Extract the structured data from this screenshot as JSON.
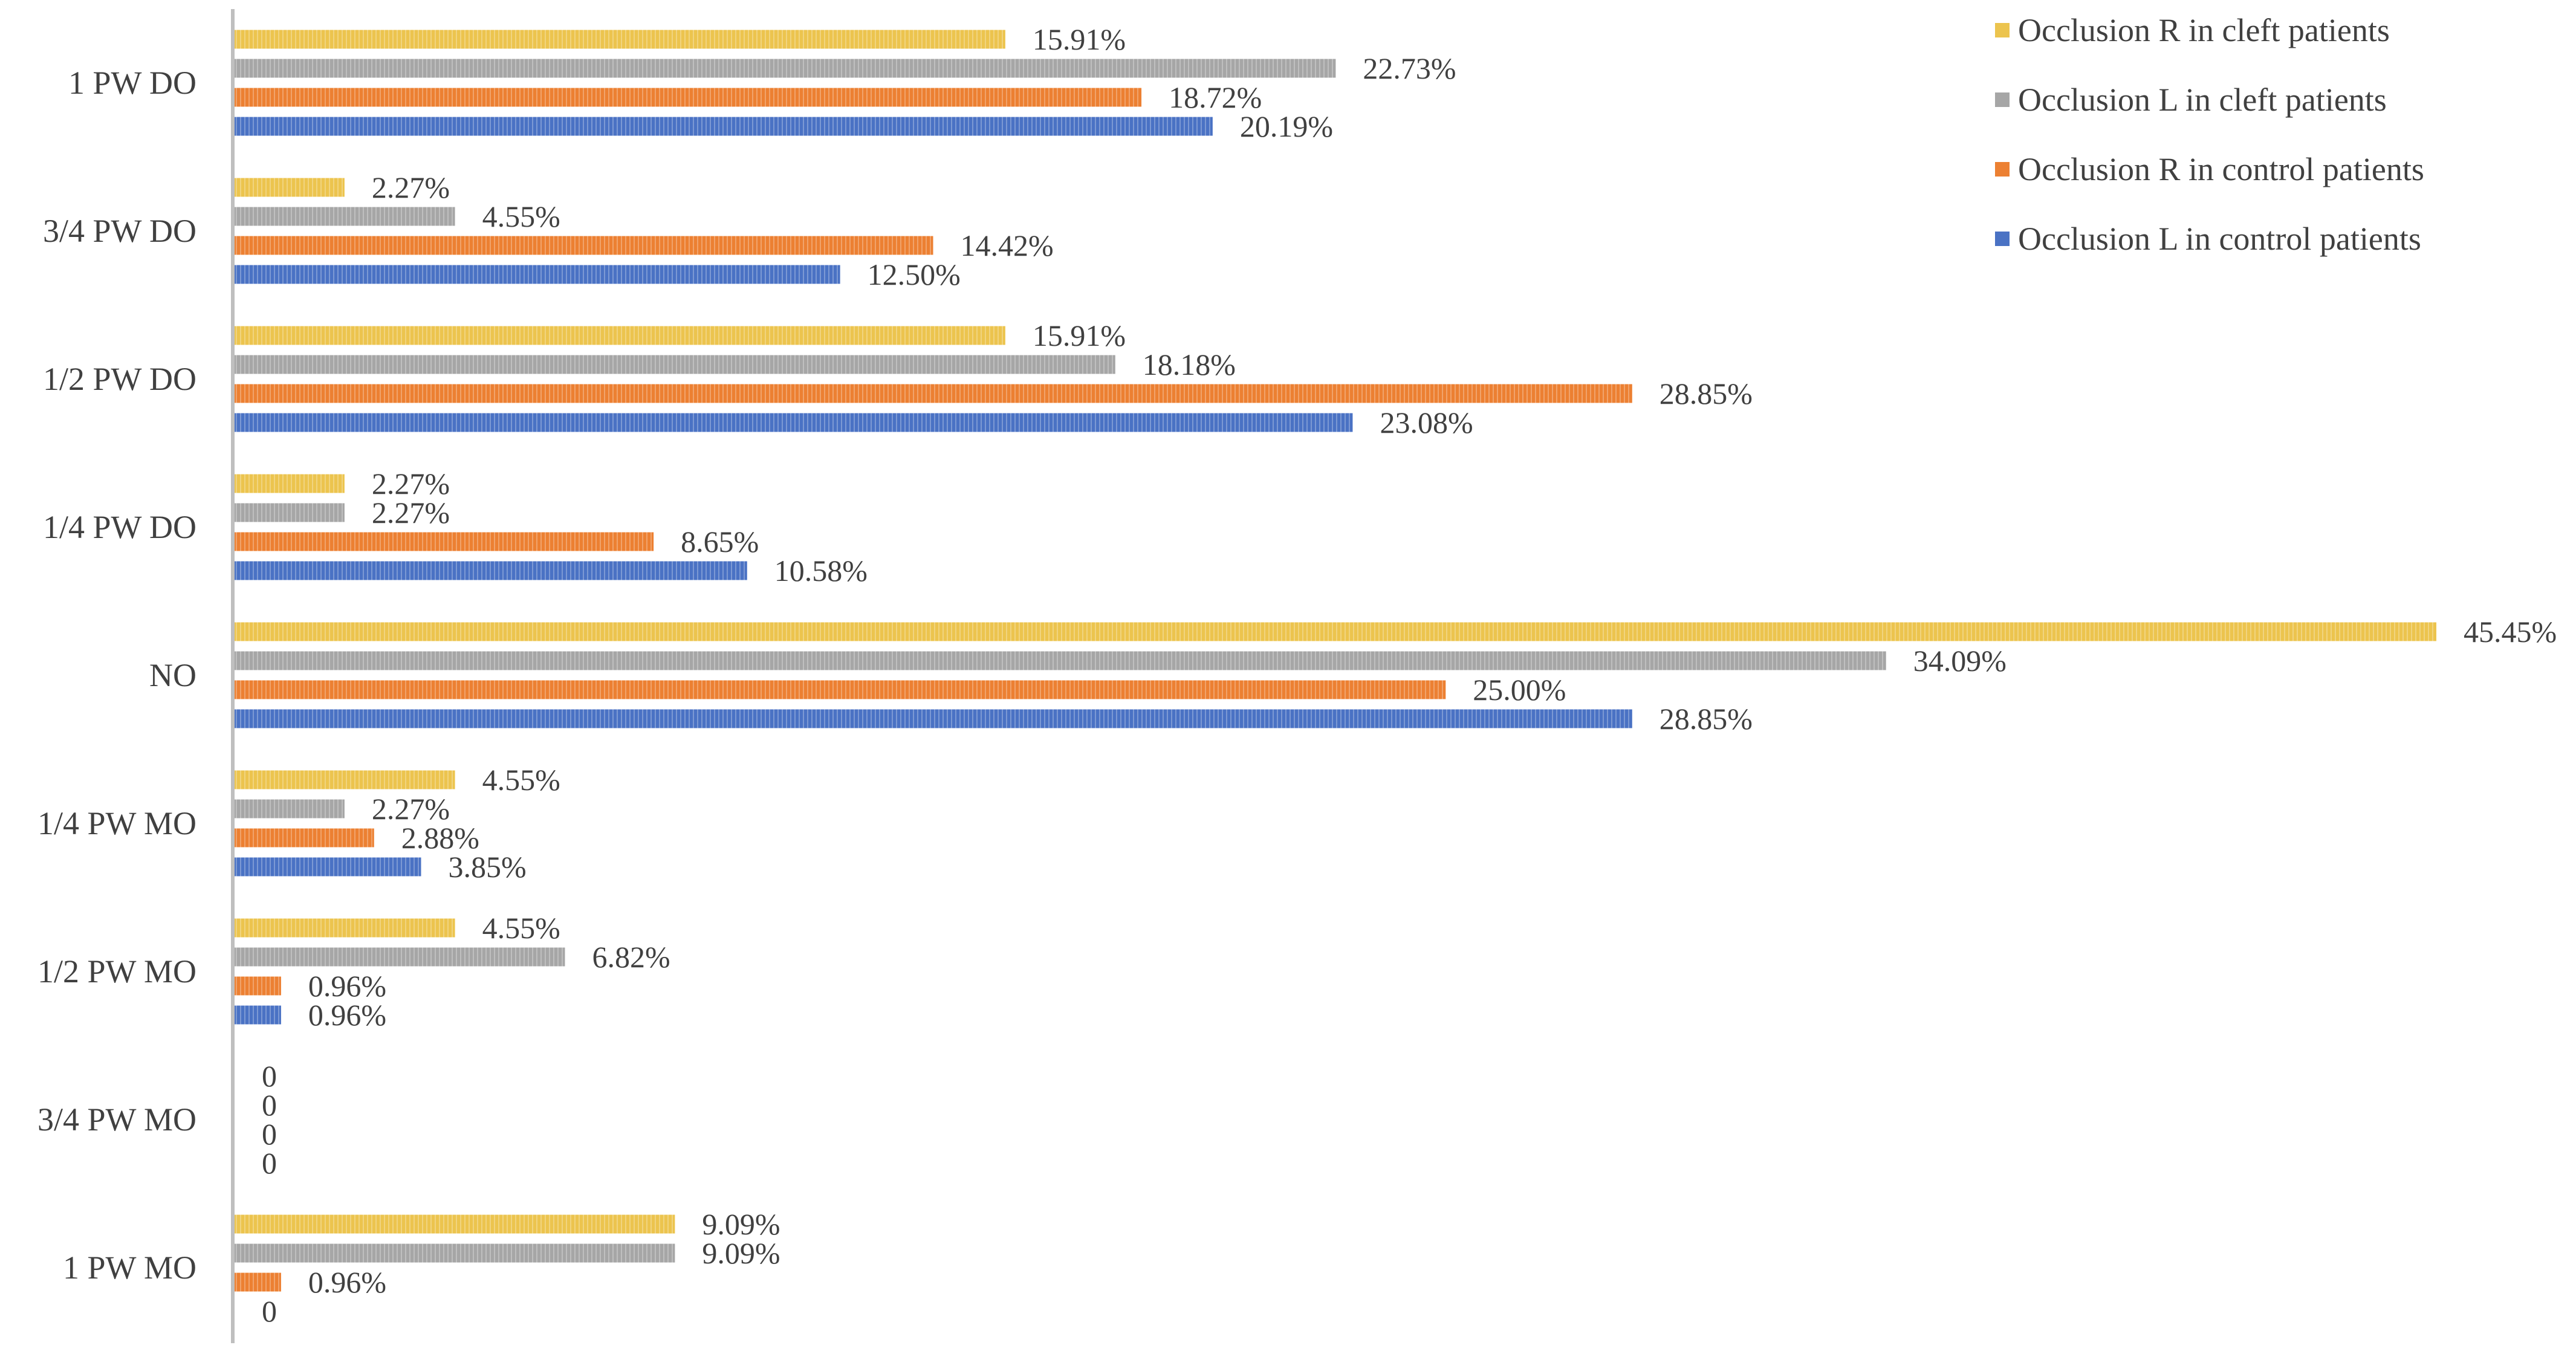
{
  "chart_data": {
    "type": "bar",
    "orientation": "horizontal",
    "title": "",
    "xlabel": "",
    "ylabel": "",
    "xlim": [
      0,
      45.45
    ],
    "grid": false,
    "legend_position": "top-right",
    "categories": [
      "1 PW DO",
      "3/4 PW DO",
      "1/2 PW DO",
      "1/4 PW DO",
      "NO",
      "1/4 PW MO",
      "1/2 PW MO",
      "3/4 PW MO",
      "1 PW MO"
    ],
    "series": [
      {
        "name": "Occlusion R in cleft patients",
        "color": "#ECC44E",
        "values": [
          15.91,
          2.27,
          15.91,
          2.27,
          45.45,
          4.55,
          4.55,
          0,
          9.09
        ],
        "labels": [
          "15.91%",
          "2.27%",
          "15.91%",
          "2.27%",
          "45.45%",
          "4.55%",
          "4.55%",
          "0",
          "9.09%"
        ]
      },
      {
        "name": "Occlusion L in cleft patients",
        "color": "#A6A6A6",
        "values": [
          22.73,
          4.55,
          18.18,
          2.27,
          34.09,
          2.27,
          6.82,
          0,
          9.09
        ],
        "labels": [
          "22.73%",
          "4.55%",
          "18.18%",
          "2.27%",
          "34.09%",
          "2.27%",
          "6.82%",
          "0",
          "9.09%"
        ]
      },
      {
        "name": "Occlusion R in control patients",
        "color": "#EC8032",
        "values": [
          18.72,
          14.42,
          28.85,
          8.65,
          25.0,
          2.88,
          0.96,
          0,
          0.96
        ],
        "labels": [
          "18.72%",
          "14.42%",
          "28.85%",
          "8.65%",
          "25.00%",
          "2.88%",
          "0.96%",
          "0",
          "0.96%"
        ]
      },
      {
        "name": "Occlusion L in control patients",
        "color": "#4A72C4",
        "values": [
          20.19,
          12.5,
          23.08,
          10.58,
          28.85,
          3.85,
          0.96,
          0,
          0
        ],
        "labels": [
          "20.19%",
          "12.50%",
          "23.08%",
          "10.58%",
          "28.85%",
          "3.85%",
          "0.96%",
          "0",
          "0"
        ]
      }
    ]
  }
}
